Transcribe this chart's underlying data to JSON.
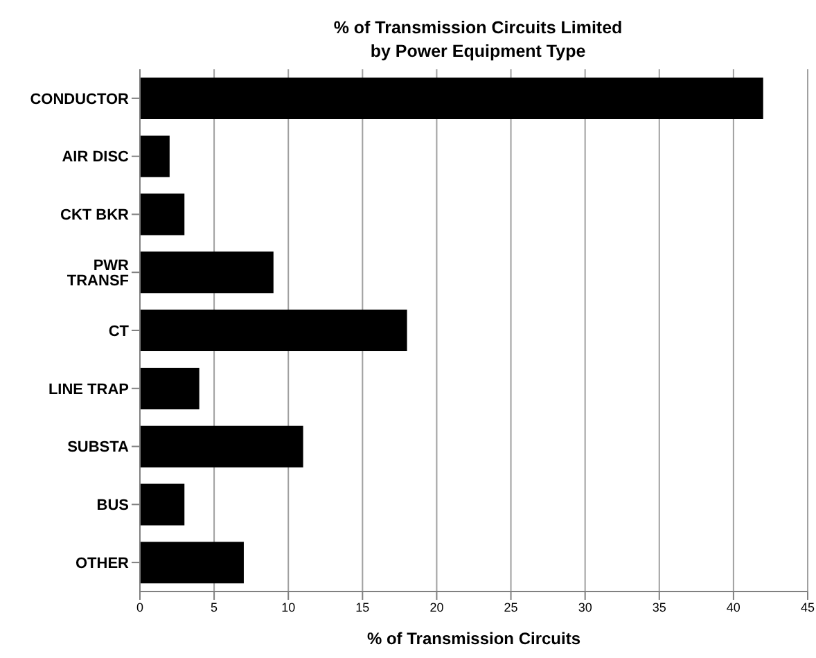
{
  "chart_data": {
    "type": "bar",
    "orientation": "horizontal",
    "title": "% of Transmission Circuits Limited\nby Power Equipment Type",
    "xlabel": "% of Transmission Circuits",
    "categories": [
      "CONDUCTOR",
      "AIR DISC",
      "CKT BKR",
      "PWR TRANSF",
      "CT",
      "LINE TRAP",
      "SUBSTA",
      "BUS",
      "OTHER"
    ],
    "values": [
      42,
      2,
      3,
      9,
      18,
      4,
      11,
      3,
      7
    ],
    "color": "#000000",
    "xlim": [
      0,
      45
    ],
    "xticks": [
      0,
      5,
      10,
      15,
      20,
      25,
      30,
      35,
      40,
      45
    ],
    "grid": "x",
    "legend": false
  }
}
